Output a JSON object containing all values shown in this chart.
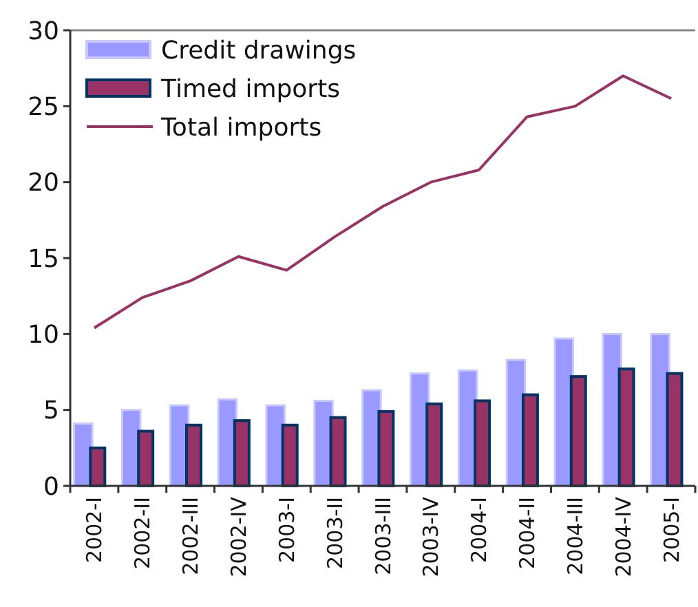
{
  "chart_data": {
    "type": "bar",
    "categories": [
      "2002-I",
      "2002-II",
      "2002-III",
      "2002-IV",
      "2003-I",
      "2003-II",
      "2003-III",
      "2003-IV",
      "2004-I",
      "2004-II",
      "2004-III",
      "2004-IV",
      "2005-I"
    ],
    "series": [
      {
        "name": "Credit drawings",
        "color": "#9999ff",
        "values": [
          4.1,
          5.0,
          5.3,
          5.7,
          5.3,
          5.6,
          6.3,
          7.4,
          7.6,
          8.3,
          9.7,
          10.0,
          10.0
        ]
      },
      {
        "name": "Timed imports",
        "color": "#993366",
        "values": [
          2.5,
          3.6,
          4.0,
          4.3,
          4.0,
          4.5,
          4.9,
          5.4,
          5.6,
          6.0,
          7.2,
          7.7,
          7.4
        ]
      },
      {
        "name": "Total imports",
        "type": "line",
        "color": "#993366",
        "values": [
          10.4,
          12.4,
          13.5,
          15.1,
          14.2,
          16.4,
          18.4,
          20.0,
          20.8,
          24.3,
          25.0,
          27.0,
          25.5
        ]
      }
    ],
    "ylim": [
      0,
      30
    ],
    "yticks": [
      0,
      5,
      10,
      15,
      20,
      25,
      30
    ],
    "grid": false,
    "legend": "top left",
    "marker": "none"
  }
}
